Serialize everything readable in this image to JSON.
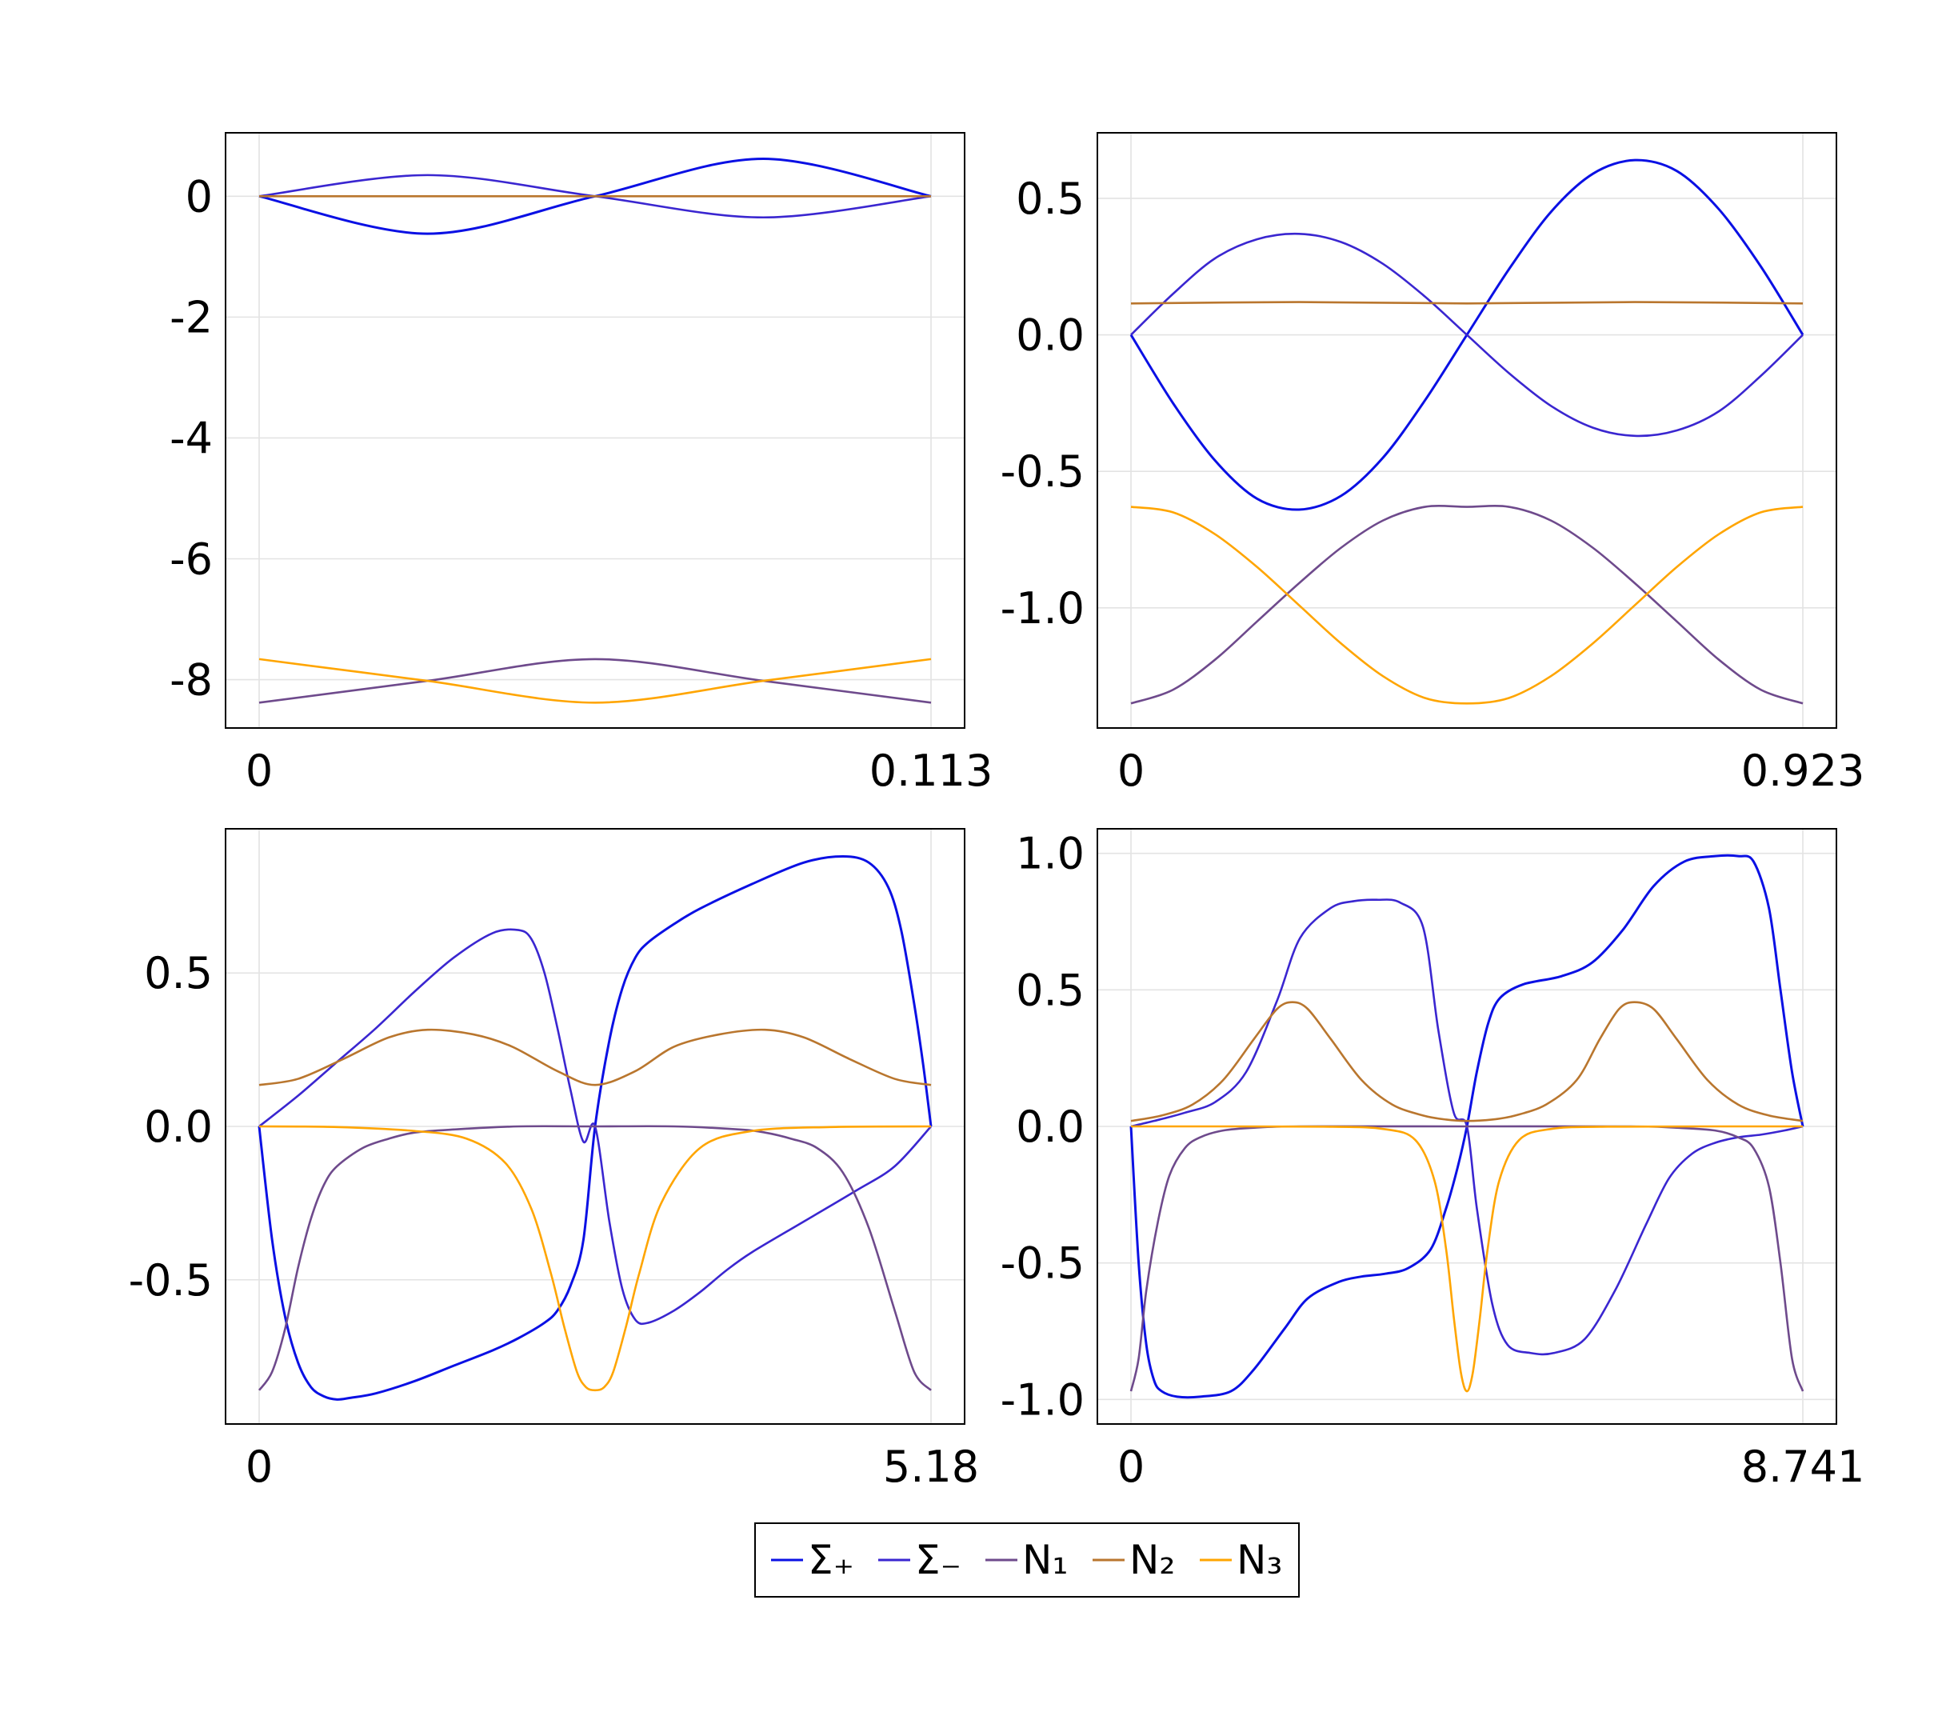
{
  "colors": {
    "sigma_plus": "#0a10e4",
    "sigma_minus": "#3a26d0",
    "n1": "#6e4a8c",
    "n2": "#b9762e",
    "n3": "#ffa500",
    "grid": "#e3e3e3"
  },
  "legend": {
    "placement": "bottom-center",
    "entries": [
      "Σ₊",
      "Σ₋",
      "N₁",
      "N₂",
      "N₃"
    ]
  },
  "chart_data": [
    {
      "type": "line",
      "panel": "top-left",
      "x_ticks": [
        "0",
        "0.113"
      ],
      "xlim": [
        0,
        0.113
      ],
      "y_ticks": [
        "0",
        "-2",
        "-4",
        "-6",
        "-8"
      ],
      "y_tick_values": [
        0,
        -2,
        -4,
        -6,
        -8
      ],
      "ylim": [
        -8.8,
        1.05
      ],
      "grid": true,
      "series": [
        {
          "name": "Σ₊",
          "x": [
            0,
            0.0283,
            0.0565,
            0.0848,
            0.113
          ],
          "values": [
            0,
            -0.62,
            0,
            0.62,
            0
          ]
        },
        {
          "name": "Σ₋",
          "x": [
            0,
            0.0283,
            0.0565,
            0.0848,
            0.113
          ],
          "values": [
            0,
            0.35,
            0,
            -0.35,
            0
          ]
        },
        {
          "name": "N₁",
          "x": [
            0,
            0.0283,
            0.0565,
            0.0848,
            0.113
          ],
          "values": [
            -8.38,
            -8.02,
            -7.66,
            -8.02,
            -8.38
          ]
        },
        {
          "name": "N₂",
          "x": [
            0,
            0.113
          ],
          "values": [
            0,
            0
          ]
        },
        {
          "name": "N₃",
          "x": [
            0,
            0.0283,
            0.0565,
            0.0848,
            0.113
          ],
          "values": [
            -7.66,
            -8.02,
            -8.38,
            -8.02,
            -7.66
          ]
        }
      ]
    },
    {
      "type": "line",
      "panel": "top-right",
      "x_ticks": [
        "0",
        "0.923"
      ],
      "xlim": [
        0,
        0.923
      ],
      "y_ticks": [
        "0.5",
        "0.0",
        "-0.5",
        "-1.0"
      ],
      "y_tick_values": [
        0.5,
        0.0,
        -0.5,
        -1.0
      ],
      "ylim": [
        -1.44,
        0.74
      ],
      "grid": true,
      "series": [
        {
          "name": "Σ₊",
          "x": [
            0,
            0.0577,
            0.1154,
            0.1731,
            0.2308,
            0.2885,
            0.3462,
            0.4039,
            0.4615,
            0.5192,
            0.5769,
            0.6346,
            0.6923,
            0.75,
            0.8077,
            0.8654,
            0.923
          ],
          "values": [
            0,
            -0.25,
            -0.46,
            -0.6,
            -0.64,
            -0.59,
            -0.45,
            -0.24,
            0,
            0.24,
            0.45,
            0.59,
            0.64,
            0.6,
            0.46,
            0.25,
            0
          ]
        },
        {
          "name": "Σ₋",
          "x": [
            0,
            0.0577,
            0.1154,
            0.1731,
            0.2308,
            0.2885,
            0.3462,
            0.4039,
            0.4615,
            0.5192,
            0.5769,
            0.6346,
            0.6923,
            0.75,
            0.8077,
            0.8654,
            0.923
          ],
          "values": [
            0,
            0.15,
            0.28,
            0.35,
            0.37,
            0.34,
            0.26,
            0.14,
            0,
            -0.14,
            -0.26,
            -0.34,
            -0.37,
            -0.35,
            -0.28,
            -0.15,
            0
          ]
        },
        {
          "name": "N₁",
          "x": [
            0,
            0.0577,
            0.1154,
            0.1731,
            0.2308,
            0.2885,
            0.3462,
            0.4039,
            0.4615,
            0.5192,
            0.5769,
            0.6346,
            0.6923,
            0.75,
            0.8077,
            0.8654,
            0.923
          ],
          "values": [
            -1.35,
            -1.3,
            -1.19,
            -1.05,
            -0.91,
            -0.78,
            -0.68,
            -0.63,
            -0.63,
            -0.63,
            -0.68,
            -0.78,
            -0.91,
            -1.05,
            -1.19,
            -1.3,
            -1.35
          ]
        },
        {
          "name": "N₂",
          "x": [
            0,
            0.2308,
            0.4615,
            0.6923,
            0.923
          ],
          "values": [
            0.115,
            0.12,
            0.115,
            0.12,
            0.115
          ]
        },
        {
          "name": "N₃",
          "x": [
            0,
            0.0577,
            0.1154,
            0.1731,
            0.2308,
            0.2885,
            0.3462,
            0.4039,
            0.4615,
            0.5192,
            0.5769,
            0.6346,
            0.6923,
            0.75,
            0.8077,
            0.8654,
            0.923
          ],
          "values": [
            -0.63,
            -0.65,
            -0.73,
            -0.85,
            -0.99,
            -1.13,
            -1.25,
            -1.33,
            -1.35,
            -1.33,
            -1.25,
            -1.13,
            -0.99,
            -0.85,
            -0.73,
            -0.65,
            -0.63
          ]
        }
      ]
    },
    {
      "type": "line",
      "panel": "bottom-left",
      "x_ticks": [
        "0",
        "5.18"
      ],
      "xlim": [
        0,
        5.18
      ],
      "y_ticks": [
        "0.5",
        "0.0",
        "-0.5"
      ],
      "y_tick_values": [
        0.5,
        0.0,
        -0.5
      ],
      "ylim": [
        -0.97,
        0.97
      ],
      "grid": true,
      "series": [
        {
          "name": "Σ₊",
          "x": [
            0,
            0.1,
            0.2,
            0.3,
            0.4,
            0.5,
            0.6,
            0.7,
            0.9,
            1.2,
            1.5,
            1.8,
            2.0,
            2.2,
            2.3,
            2.4,
            2.5,
            2.59,
            2.7,
            2.8,
            2.9,
            3.0,
            3.2,
            3.4,
            3.8,
            4.2,
            4.5,
            4.7,
            4.85,
            4.95,
            5.05,
            5.12,
            5.18
          ],
          "values": [
            0,
            -0.37,
            -0.62,
            -0.77,
            -0.85,
            -0.88,
            -0.89,
            -0.885,
            -0.87,
            -0.83,
            -0.78,
            -0.73,
            -0.69,
            -0.64,
            -0.6,
            -0.52,
            -0.37,
            0,
            0.28,
            0.45,
            0.55,
            0.6,
            0.66,
            0.71,
            0.79,
            0.86,
            0.88,
            0.86,
            0.78,
            0.64,
            0.4,
            0.2,
            0
          ]
        },
        {
          "name": "Σ₋",
          "x": [
            0,
            0.3,
            0.6,
            0.9,
            1.2,
            1.5,
            1.8,
            2.0,
            2.1,
            2.2,
            2.3,
            2.4,
            2.5,
            2.59,
            2.7,
            2.8,
            2.9,
            3.0,
            3.2,
            3.4,
            3.6,
            3.8,
            4.2,
            4.6,
            4.9,
            5.18
          ],
          "values": [
            0,
            0.1,
            0.21,
            0.32,
            0.44,
            0.55,
            0.63,
            0.64,
            0.61,
            0.5,
            0.32,
            0.12,
            -0.05,
            0,
            -0.31,
            -0.53,
            -0.63,
            -0.64,
            -0.6,
            -0.54,
            -0.47,
            -0.41,
            -0.31,
            -0.21,
            -0.13,
            0
          ]
        },
        {
          "name": "N₁",
          "x": [
            0,
            0.1,
            0.2,
            0.3,
            0.4,
            0.5,
            0.6,
            0.8,
            1.0,
            1.2,
            1.5,
            2.0,
            2.59,
            3.2,
            3.7,
            3.9,
            4.1,
            4.3,
            4.5,
            4.7,
            4.9,
            5.05,
            5.18
          ],
          "values": [
            -0.86,
            -0.8,
            -0.66,
            -0.46,
            -0.3,
            -0.19,
            -0.13,
            -0.07,
            -0.04,
            -0.02,
            -0.01,
            0,
            0,
            0,
            -0.01,
            -0.02,
            -0.04,
            -0.07,
            -0.15,
            -0.33,
            -0.6,
            -0.8,
            -0.86
          ]
        },
        {
          "name": "N₂",
          "x": [
            0,
            0.3,
            0.65,
            1.0,
            1.3,
            1.65,
            1.95,
            2.3,
            2.59,
            2.9,
            3.2,
            3.55,
            3.9,
            4.2,
            4.55,
            4.9,
            5.18
          ],
          "values": [
            0.135,
            0.155,
            0.22,
            0.29,
            0.315,
            0.3,
            0.26,
            0.18,
            0.135,
            0.18,
            0.26,
            0.3,
            0.315,
            0.29,
            0.22,
            0.155,
            0.135
          ]
        },
        {
          "name": "N₃",
          "x": [
            0,
            0.6,
            1.2,
            1.6,
            1.9,
            2.1,
            2.25,
            2.35,
            2.45,
            2.52,
            2.59,
            2.66,
            2.73,
            2.83,
            2.93,
            3.1,
            3.4,
            3.8,
            4.4,
            5.18
          ],
          "values": [
            0,
            -0.002,
            -0.015,
            -0.04,
            -0.12,
            -0.27,
            -0.48,
            -0.65,
            -0.8,
            -0.85,
            -0.86,
            -0.85,
            -0.8,
            -0.65,
            -0.48,
            -0.25,
            -0.07,
            -0.015,
            -0.002,
            0
          ]
        }
      ]
    },
    {
      "type": "line",
      "panel": "bottom-right",
      "x_ticks": [
        "0",
        "8.741"
      ],
      "xlim": [
        0,
        8.741
      ],
      "y_ticks": [
        "1.0",
        "0.5",
        "0.0",
        "-0.5",
        "-1.0"
      ],
      "y_tick_values": [
        1.0,
        0.5,
        0.0,
        -0.5,
        -1.0
      ],
      "ylim": [
        -1.09,
        1.09
      ],
      "grid": true,
      "series": [
        {
          "name": "Σ₊",
          "x": [
            0,
            0.1,
            0.2,
            0.3,
            0.4,
            0.6,
            0.9,
            1.3,
            1.6,
            2.0,
            2.3,
            2.7,
            3.0,
            3.3,
            3.6,
            3.9,
            4.1,
            4.25,
            4.371,
            4.5,
            4.65,
            4.8,
            5.1,
            5.6,
            6.0,
            6.4,
            6.8,
            7.2,
            7.6,
            7.9,
            8.1,
            8.3,
            8.45,
            8.6,
            8.741
          ],
          "values": [
            0,
            -0.5,
            -0.8,
            -0.93,
            -0.97,
            -0.99,
            -0.99,
            -0.97,
            -0.89,
            -0.74,
            -0.63,
            -0.57,
            -0.55,
            -0.54,
            -0.52,
            -0.45,
            -0.3,
            -0.15,
            0,
            0.2,
            0.38,
            0.47,
            0.52,
            0.55,
            0.6,
            0.72,
            0.88,
            0.97,
            0.99,
            0.99,
            0.97,
            0.8,
            0.5,
            0.2,
            0
          ]
        },
        {
          "name": "Σ₋",
          "x": [
            0,
            0.3,
            0.7,
            1.1,
            1.5,
            1.9,
            2.2,
            2.6,
            2.9,
            3.2,
            3.5,
            3.8,
            4.0,
            4.2,
            4.371,
            4.5,
            4.7,
            4.9,
            5.2,
            5.5,
            5.9,
            6.3,
            6.7,
            7.0,
            7.3,
            7.6,
            7.9,
            8.2,
            8.5,
            8.741
          ],
          "values": [
            0,
            0.02,
            0.05,
            0.09,
            0.2,
            0.46,
            0.69,
            0.8,
            0.825,
            0.83,
            0.82,
            0.73,
            0.35,
            0.05,
            0,
            -0.3,
            -0.65,
            -0.8,
            -0.83,
            -0.83,
            -0.78,
            -0.6,
            -0.36,
            -0.19,
            -0.1,
            -0.06,
            -0.04,
            -0.03,
            -0.015,
            0
          ]
        },
        {
          "name": "N₁",
          "x": [
            0,
            0.1,
            0.2,
            0.35,
            0.5,
            0.7,
            0.9,
            1.2,
            1.6,
            2.2,
            4.371,
            6.5,
            7.1,
            7.6,
            7.9,
            8.1,
            8.3,
            8.45,
            8.6,
            8.741
          ],
          "values": [
            -0.97,
            -0.85,
            -0.6,
            -0.35,
            -0.18,
            -0.08,
            -0.04,
            -0.015,
            -0.005,
            0,
            0,
            0,
            -0.005,
            -0.015,
            -0.04,
            -0.08,
            -0.22,
            -0.5,
            -0.85,
            -0.97
          ]
        },
        {
          "name": "N₂",
          "x": [
            0,
            0.4,
            0.8,
            1.2,
            1.6,
            1.9,
            2.1,
            2.3,
            2.6,
            3.0,
            3.4,
            3.8,
            4.1,
            4.371,
            4.7,
            5.0,
            5.4,
            5.8,
            6.1,
            6.35,
            6.55,
            6.8,
            7.1,
            7.5,
            7.9,
            8.3,
            8.741
          ],
          "values": [
            0.02,
            0.04,
            0.08,
            0.17,
            0.32,
            0.43,
            0.455,
            0.43,
            0.32,
            0.17,
            0.08,
            0.04,
            0.025,
            0.02,
            0.025,
            0.04,
            0.08,
            0.17,
            0.32,
            0.43,
            0.455,
            0.43,
            0.32,
            0.17,
            0.08,
            0.04,
            0.02
          ]
        },
        {
          "name": "N₃",
          "x": [
            0,
            2.5,
            3.3,
            3.7,
            3.95,
            4.1,
            4.2,
            4.28,
            4.33,
            4.371,
            4.41,
            4.46,
            4.54,
            4.64,
            4.79,
            5.05,
            5.45,
            6.2,
            8.741
          ],
          "values": [
            0,
            -0.001,
            -0.01,
            -0.05,
            -0.2,
            -0.45,
            -0.7,
            -0.88,
            -0.95,
            -0.97,
            -0.95,
            -0.88,
            -0.7,
            -0.45,
            -0.2,
            -0.05,
            -0.01,
            -0.001,
            0
          ]
        }
      ]
    }
  ]
}
